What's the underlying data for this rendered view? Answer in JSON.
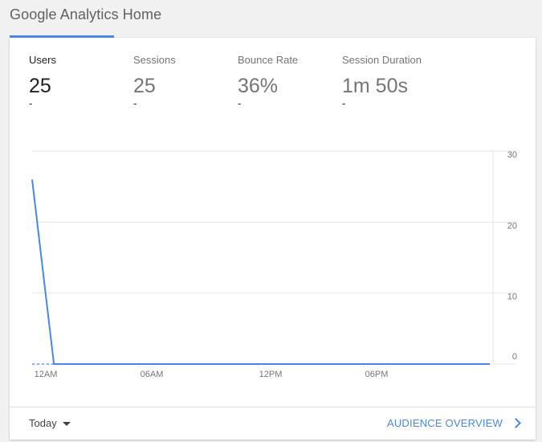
{
  "page": {
    "title": "Google Analytics Home"
  },
  "metrics": [
    {
      "label": "Users",
      "value": "25",
      "sub": "-",
      "active": true
    },
    {
      "label": "Sessions",
      "value": "25",
      "sub": "-",
      "active": false
    },
    {
      "label": "Bounce Rate",
      "value": "36%",
      "sub": "-",
      "active": false
    },
    {
      "label": "Session Duration",
      "value": "1m 50s",
      "sub": "-",
      "active": false
    }
  ],
  "colors": {
    "accent": "#4a86e8",
    "gridline": "#e6e6e6",
    "tick_text": "#757575"
  },
  "chart_data": {
    "type": "line",
    "x_tick_labels": [
      "12AM",
      "06AM",
      "12PM",
      "06PM"
    ],
    "y_tick_labels": [
      "30",
      "20",
      "10",
      "0"
    ],
    "ylim": [
      0,
      30
    ],
    "series": [
      {
        "values": [
          26,
          0,
          0,
          0,
          0,
          0,
          0,
          0,
          0,
          0,
          0,
          0,
          0,
          0,
          0,
          0,
          0,
          0,
          0,
          0,
          0,
          0
        ]
      }
    ],
    "grid": true,
    "y_axis_side": "right"
  },
  "footer": {
    "date_range": "Today",
    "link_label": "AUDIENCE OVERVIEW"
  }
}
